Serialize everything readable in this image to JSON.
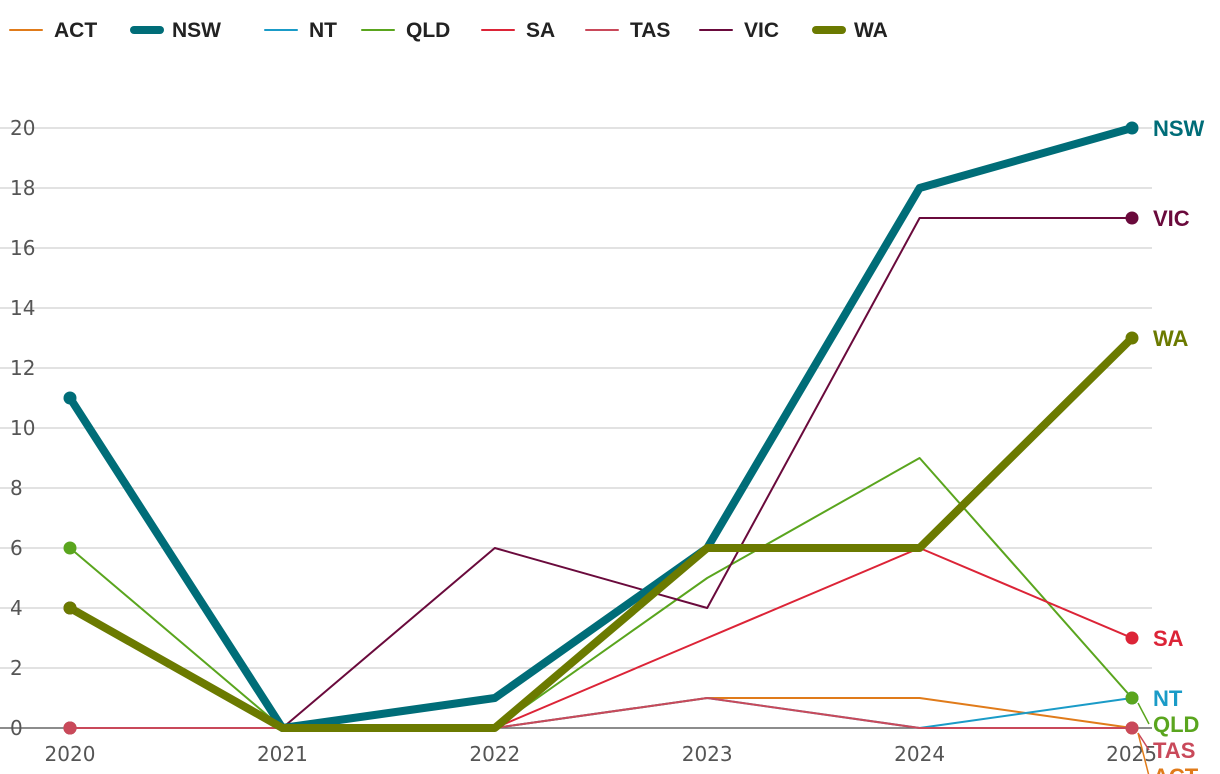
{
  "chart_data": {
    "type": "line",
    "title": "",
    "xlabel": "",
    "ylabel": "",
    "x": [
      "2020",
      "2021",
      "2022",
      "2023",
      "2024",
      "2025"
    ],
    "ylim": [
      0,
      20
    ],
    "yticks": [
      "0",
      "2",
      "4",
      "6",
      "8",
      "10",
      "12",
      "14",
      "16",
      "18",
      "20"
    ],
    "grid": true,
    "legend_position": "top-left",
    "series": [
      {
        "name": "ACT",
        "color": "#e07b1a",
        "emphasis": false,
        "values": [
          0,
          0,
          0,
          1,
          1,
          0
        ]
      },
      {
        "name": "NSW",
        "color": "#006d78",
        "emphasis": true,
        "values": [
          11,
          0,
          1,
          6,
          18,
          20
        ]
      },
      {
        "name": "NT",
        "color": "#1a9bc7",
        "emphasis": false,
        "values": [
          0,
          0,
          0,
          1,
          0,
          1
        ]
      },
      {
        "name": "QLD",
        "color": "#5aa51e",
        "emphasis": false,
        "values": [
          6,
          0,
          0,
          5,
          9,
          1
        ]
      },
      {
        "name": "SA",
        "color": "#dc2437",
        "emphasis": false,
        "values": [
          0,
          0,
          0,
          3,
          6,
          3
        ]
      },
      {
        "name": "TAS",
        "color": "#c9495a",
        "emphasis": false,
        "values": [
          0,
          0,
          0,
          1,
          0,
          0
        ]
      },
      {
        "name": "VIC",
        "color": "#6a0a3c",
        "emphasis": false,
        "values": [
          4,
          0,
          6,
          4,
          17,
          17
        ]
      },
      {
        "name": "WA",
        "color": "#6b7a00",
        "emphasis": true,
        "values": [
          4,
          0,
          0,
          6,
          6,
          13
        ]
      }
    ],
    "end_labels": [
      {
        "series": "NSW",
        "text": "NSW"
      },
      {
        "series": "VIC",
        "text": "VIC"
      },
      {
        "series": "WA",
        "text": "WA"
      },
      {
        "series": "SA",
        "text": "SA"
      },
      {
        "series": "NT",
        "text": "NT"
      },
      {
        "series": "QLD",
        "text": "QLD"
      },
      {
        "series": "TAS",
        "text": "TAS"
      },
      {
        "series": "ACT",
        "text": "ACT"
      }
    ]
  }
}
